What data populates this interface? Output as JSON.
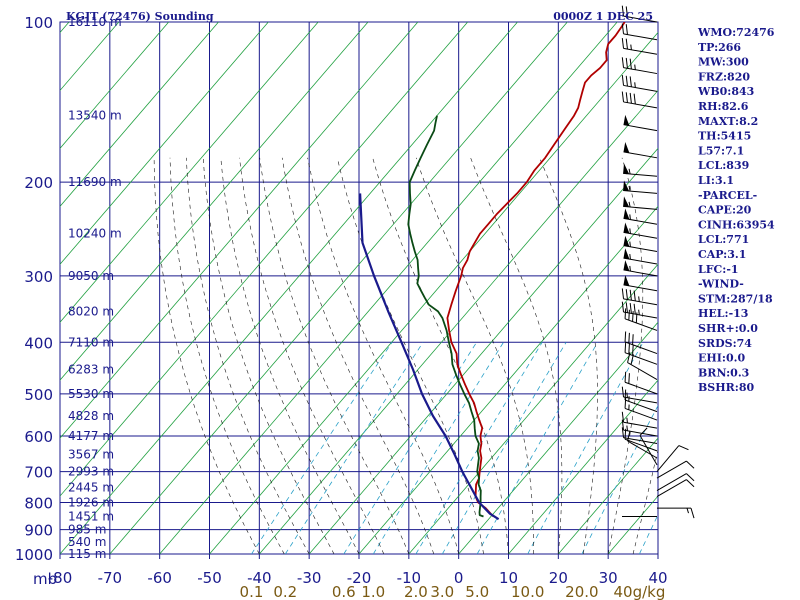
{
  "header": {
    "title": "KGJT (72476) Sounding",
    "datetime": "0000Z  1 DEC 25"
  },
  "colors": {
    "axes": "#1a1a8c",
    "dry_adiabat": "#20a040",
    "moist_adiabat": "#1a1a1a",
    "mixing_ratio": "#2aa0c8",
    "temperature": "#b00000",
    "dewpoint": "#0a4a14",
    "parcel": "#1a1a8c",
    "wind_barb": "#000000",
    "mixing_label": "#7a5a14"
  },
  "chart_data": {
    "type": "line",
    "title": "KGJT (72476) Sounding",
    "xlabel": "",
    "ylabel": "mb",
    "xlim": [
      -80,
      40
    ],
    "ylim": [
      1000,
      100
    ],
    "y_scale": "log",
    "grid": true,
    "pressure_ticks": [
      "100",
      "200",
      "300",
      "400",
      "500",
      "600",
      "700",
      "800",
      "900",
      "1000"
    ],
    "temperature_ticks": [
      "-80",
      "-70",
      "-60",
      "-50",
      "-40",
      "-30",
      "-20",
      "-10",
      "0",
      "10",
      "20",
      "30",
      "40"
    ],
    "mixing_ratio_labels": [
      "0.1",
      "0.2",
      "0.6",
      "1.0",
      "2.0",
      "3.0",
      "5.0",
      "10.0",
      "20.0",
      "40g/kg"
    ],
    "mixing_ratio_values": [
      0.1,
      0.2,
      0.6,
      1.0,
      2.0,
      3.0,
      5.0,
      10.0,
      20.0,
      40.0
    ],
    "height_labels": [
      {
        "p": 100,
        "label": "16110 m"
      },
      {
        "p": 150,
        "label": "13540 m"
      },
      {
        "p": 200,
        "label": "11690 m"
      },
      {
        "p": 250,
        "label": "10240 m"
      },
      {
        "p": 300,
        "label": "9050 m"
      },
      {
        "p": 350,
        "label": "8020 m"
      },
      {
        "p": 400,
        "label": "7110 m"
      },
      {
        "p": 450,
        "label": "6283 m"
      },
      {
        "p": 500,
        "label": "5530 m"
      },
      {
        "p": 550,
        "label": "4828 m"
      },
      {
        "p": 600,
        "label": "4177 m"
      },
      {
        "p": 650,
        "label": "3567 m"
      },
      {
        "p": 700,
        "label": "2993 m"
      },
      {
        "p": 750,
        "label": "2445 m"
      },
      {
        "p": 800,
        "label": "1926 m"
      },
      {
        "p": 850,
        "label": "1451 m"
      },
      {
        "p": 900,
        "label": "985 m"
      },
      {
        "p": 950,
        "label": "540 m"
      },
      {
        "p": 1000,
        "label": "115 m"
      }
    ],
    "series": [
      {
        "id": "temperature",
        "points": [
          [
            850,
            0.5
          ],
          [
            840,
            -0.5
          ],
          [
            820,
            -2.5
          ],
          [
            800,
            -5
          ],
          [
            780,
            -6.5
          ],
          [
            760,
            -7.5
          ],
          [
            740,
            -8.5
          ],
          [
            720,
            -9
          ],
          [
            700,
            -10
          ],
          [
            680,
            -11
          ],
          [
            660,
            -12
          ],
          [
            640,
            -13.5
          ],
          [
            620,
            -14.5
          ],
          [
            600,
            -16
          ],
          [
            580,
            -17
          ],
          [
            560,
            -19
          ],
          [
            540,
            -21
          ],
          [
            520,
            -23
          ],
          [
            500,
            -25.5
          ],
          [
            480,
            -28
          ],
          [
            460,
            -30.5
          ],
          [
            440,
            -33
          ],
          [
            420,
            -35
          ],
          [
            400,
            -38
          ],
          [
            380,
            -40.5
          ],
          [
            360,
            -43
          ],
          [
            340,
            -44.5
          ],
          [
            320,
            -46
          ],
          [
            300,
            -47.5
          ],
          [
            290,
            -48.5
          ],
          [
            280,
            -49
          ],
          [
            270,
            -50
          ],
          [
            260,
            -50.5
          ],
          [
            250,
            -51
          ],
          [
            240,
            -51
          ],
          [
            230,
            -51
          ],
          [
            220,
            -50.8
          ],
          [
            210,
            -50.5
          ],
          [
            200,
            -50.5
          ],
          [
            190,
            -51
          ],
          [
            180,
            -51
          ],
          [
            170,
            -51.5
          ],
          [
            160,
            -52
          ],
          [
            150,
            -52.5
          ],
          [
            145,
            -53
          ],
          [
            140,
            -54
          ],
          [
            135,
            -55
          ],
          [
            130,
            -56
          ],
          [
            126,
            -56
          ],
          [
            122,
            -55.5
          ],
          [
            118,
            -55.5
          ],
          [
            114,
            -57
          ],
          [
            110,
            -58
          ],
          [
            106,
            -58
          ],
          [
            102,
            -58.3
          ],
          [
            100,
            -58.5
          ]
        ]
      },
      {
        "id": "dewpoint",
        "points": [
          [
            850,
            -1.5
          ],
          [
            845,
            -2.5
          ],
          [
            835,
            -3
          ],
          [
            800,
            -4.5
          ],
          [
            780,
            -5.5
          ],
          [
            760,
            -6.5
          ],
          [
            740,
            -8
          ],
          [
            720,
            -9
          ],
          [
            700,
            -10.5
          ],
          [
            680,
            -11.5
          ],
          [
            660,
            -12.5
          ],
          [
            640,
            -14
          ],
          [
            620,
            -15
          ],
          [
            600,
            -17
          ],
          [
            580,
            -18.5
          ],
          [
            560,
            -20
          ],
          [
            540,
            -22
          ],
          [
            520,
            -24
          ],
          [
            500,
            -26.5
          ],
          [
            480,
            -29
          ],
          [
            460,
            -31.5
          ],
          [
            440,
            -34
          ],
          [
            420,
            -36
          ],
          [
            400,
            -38.5
          ],
          [
            380,
            -41
          ],
          [
            360,
            -44
          ],
          [
            350,
            -46
          ],
          [
            340,
            -49
          ],
          [
            330,
            -51
          ],
          [
            320,
            -53
          ],
          [
            310,
            -55
          ],
          [
            300,
            -56
          ],
          [
            290,
            -57.5
          ],
          [
            280,
            -59
          ],
          [
            270,
            -61
          ],
          [
            260,
            -63
          ],
          [
            250,
            -65
          ],
          [
            240,
            -67
          ],
          [
            230,
            -68.5
          ],
          [
            220,
            -70
          ],
          [
            210,
            -72
          ],
          [
            200,
            -74
          ],
          [
            190,
            -75
          ],
          [
            180,
            -76
          ],
          [
            170,
            -77
          ],
          [
            160,
            -78
          ],
          [
            155,
            -79
          ],
          [
            150,
            -80
          ]
        ]
      },
      {
        "id": "parcel",
        "points": [
          [
            860,
            2
          ],
          [
            839,
            -0.8
          ],
          [
            800,
            -4.8
          ],
          [
            750,
            -9
          ],
          [
            700,
            -13.5
          ],
          [
            650,
            -18
          ],
          [
            600,
            -23
          ],
          [
            550,
            -29
          ],
          [
            500,
            -35
          ],
          [
            450,
            -41
          ],
          [
            400,
            -48
          ],
          [
            350,
            -56
          ],
          [
            300,
            -65
          ],
          [
            260,
            -73
          ],
          [
            210,
            -82
          ]
        ]
      }
    ],
    "wind_barbs": [
      {
        "p": 850,
        "dir": 270,
        "spd": 0
      },
      {
        "p": 820,
        "dir": 90,
        "spd": 15
      },
      {
        "p": 780,
        "dir": 60,
        "spd": 10
      },
      {
        "p": 760,
        "dir": 60,
        "spd": 10
      },
      {
        "p": 720,
        "dir": 60,
        "spd": 10
      },
      {
        "p": 700,
        "dir": 40,
        "spd": 10
      },
      {
        "p": 680,
        "dir": 330,
        "spd": 10
      },
      {
        "p": 660,
        "dir": 300,
        "spd": 10
      },
      {
        "p": 640,
        "dir": 290,
        "spd": 10
      },
      {
        "p": 620,
        "dir": 280,
        "spd": 10
      },
      {
        "p": 600,
        "dir": 280,
        "spd": 15
      },
      {
        "p": 580,
        "dir": 280,
        "spd": 15
      },
      {
        "p": 560,
        "dir": 290,
        "spd": 15
      },
      {
        "p": 540,
        "dir": 290,
        "spd": 15
      },
      {
        "p": 520,
        "dir": 280,
        "spd": 15
      },
      {
        "p": 500,
        "dir": 290,
        "spd": 20
      },
      {
        "p": 470,
        "dir": 300,
        "spd": 20
      },
      {
        "p": 440,
        "dir": 290,
        "spd": 30
      },
      {
        "p": 420,
        "dir": 290,
        "spd": 30
      },
      {
        "p": 380,
        "dir": 290,
        "spd": 40
      },
      {
        "p": 360,
        "dir": 280,
        "spd": 45
      },
      {
        "p": 340,
        "dir": 280,
        "spd": 45
      },
      {
        "p": 320,
        "dir": 280,
        "spd": 50
      },
      {
        "p": 300,
        "dir": 280,
        "spd": 55
      },
      {
        "p": 285,
        "dir": 280,
        "spd": 55
      },
      {
        "p": 270,
        "dir": 280,
        "spd": 55
      },
      {
        "p": 255,
        "dir": 280,
        "spd": 55
      },
      {
        "p": 240,
        "dir": 280,
        "spd": 55
      },
      {
        "p": 225,
        "dir": 275,
        "spd": 55
      },
      {
        "p": 210,
        "dir": 275,
        "spd": 55
      },
      {
        "p": 195,
        "dir": 275,
        "spd": 55
      },
      {
        "p": 180,
        "dir": 280,
        "spd": 50
      },
      {
        "p": 160,
        "dir": 280,
        "spd": 50
      },
      {
        "p": 145,
        "dir": 280,
        "spd": 40
      },
      {
        "p": 135,
        "dir": 280,
        "spd": 35
      },
      {
        "p": 125,
        "dir": 280,
        "spd": 35
      },
      {
        "p": 115,
        "dir": 280,
        "spd": 25
      },
      {
        "p": 108,
        "dir": 280,
        "spd": 20
      },
      {
        "p": 100,
        "dir": 280,
        "spd": 20
      }
    ]
  },
  "indices": [
    "WMO:72476",
    "TP:266",
    "MW:300",
    "FRZ:820",
    "WB0:843",
    "RH:82.6",
    "MAXT:8.2",
    "TH:5415",
    "L57:7.1",
    "LCL:839",
    "LI:3.1",
    "-PARCEL-",
    "CAPE:20",
    "CINH:63954",
    "LCL:771",
    "CAP:3.1",
    "LFC:-1",
    "-WIND-",
    "STM:287/18",
    "HEL:-13",
    "SHR+:0.0",
    "SRDS:74",
    "EHI:0.0",
    "BRN:0.3",
    "BSHR:80"
  ]
}
